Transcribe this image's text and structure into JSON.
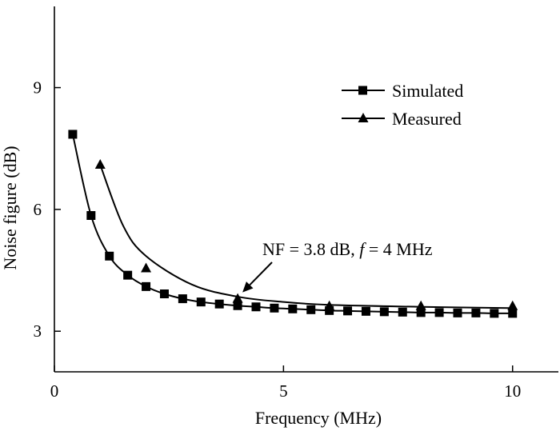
{
  "chart_data": {
    "type": "line",
    "xlabel": "Frequency (MHz)",
    "ylabel": "Noise figure (dB)",
    "xlim": [
      0,
      11
    ],
    "ylim": [
      2,
      11
    ],
    "x_ticks": [
      0,
      5,
      10
    ],
    "y_ticks": [
      3,
      6,
      9
    ],
    "grid": false,
    "legend_position": "top-right",
    "series": [
      {
        "name": "Simulated",
        "marker": "square",
        "color": "#000000",
        "x": [
          0.4,
          0.8,
          1.2,
          1.6,
          2.0,
          2.4,
          2.8,
          3.2,
          3.6,
          4.0,
          4.4,
          4.8,
          5.2,
          5.6,
          6.0,
          6.4,
          6.8,
          7.2,
          7.6,
          8.0,
          8.4,
          8.8,
          9.2,
          9.6,
          10.0
        ],
        "y": [
          7.85,
          5.85,
          4.85,
          4.38,
          4.1,
          3.92,
          3.8,
          3.72,
          3.67,
          3.63,
          3.6,
          3.57,
          3.55,
          3.53,
          3.51,
          3.5,
          3.49,
          3.48,
          3.47,
          3.46,
          3.46,
          3.45,
          3.45,
          3.44,
          3.44
        ]
      },
      {
        "name": "Measured",
        "marker": "triangle",
        "color": "#000000",
        "x": [
          1.0,
          2.0,
          4.0,
          6.0,
          8.0,
          10.0
        ],
        "y": [
          7.1,
          4.55,
          3.8,
          3.62,
          3.62,
          3.62
        ]
      }
    ],
    "annotations": [
      {
        "prefix": "NF = 3.8 dB, ",
        "italic": "f",
        "suffix": " = 4 MHz",
        "arrow_to": [
          4.0,
          3.8
        ]
      }
    ]
  }
}
